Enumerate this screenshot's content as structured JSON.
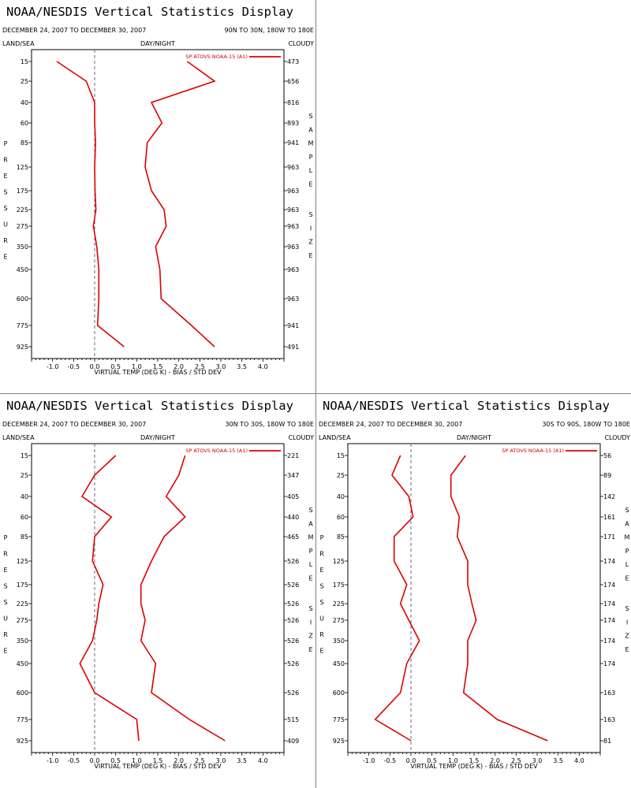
{
  "common": {
    "title": "NOAA/NESDIS Vertical Statistics Display",
    "date_range": "DECEMBER 24, 2007 TO DECEMBER 30, 2007",
    "land_sea": "LAND/SEA",
    "day_night": "DAY/NIGHT",
    "cloudy": "CLOUDY",
    "legend_label": "SP ATOVS NOAA-15 (A1)",
    "xlabel": "VIRTUAL TEMP (DEG K) - BIAS / STD DEV",
    "ylabel_vertical": "PRESSURE",
    "right_label_vertical": [
      "SAMPLE",
      "SIZE"
    ],
    "line_color": "#dd0000",
    "x_ticks": [
      "-1.0",
      "-0.5",
      "0.0",
      "0.5",
      "1.0",
      "1.5",
      "2.0",
      "2.5",
      "3.0",
      "3.5",
      "4.0"
    ]
  },
  "chart_data": [
    {
      "type": "line",
      "region": "90N TO 30N, 180W TO 180E",
      "levels": [
        "15",
        "25",
        "40",
        "60",
        "85",
        "125",
        "175",
        "225",
        "275",
        "350",
        "450",
        "600",
        "775",
        "925"
      ],
      "sample_size": [
        "473",
        "656",
        "816",
        "893",
        "941",
        "963",
        "963",
        "963",
        "963",
        "963",
        "963",
        "963",
        "941",
        "491"
      ],
      "xlim": [
        -1.5,
        4.5
      ],
      "series": [
        {
          "values": [
            -0.9,
            -0.2,
            -0.0,
            0.0,
            0.02,
            0.0,
            0.01,
            0.03,
            -0.03,
            0.05,
            0.1,
            0.1,
            0.07,
            0.7
          ]
        },
        {
          "values": [
            2.2,
            2.85,
            1.35,
            1.6,
            1.25,
            1.2,
            1.35,
            1.65,
            1.7,
            1.45,
            1.55,
            1.58,
            2.3,
            2.85
          ]
        }
      ]
    },
    {
      "type": "line",
      "region": "30N TO 30S, 180W TO 180E",
      "levels": [
        "15",
        "25",
        "40",
        "60",
        "85",
        "125",
        "175",
        "225",
        "275",
        "350",
        "450",
        "600",
        "775",
        "925"
      ],
      "sample_size": [
        "221",
        "347",
        "405",
        "440",
        "465",
        "526",
        "526",
        "526",
        "526",
        "526",
        "526",
        "526",
        "515",
        "409"
      ],
      "xlim": [
        -1.5,
        4.5
      ],
      "series": [
        {
          "values": [
            0.5,
            0.0,
            -0.3,
            0.4,
            0.0,
            -0.05,
            0.2,
            0.1,
            0.05,
            -0.05,
            -0.35,
            0.0,
            1.0,
            1.05
          ]
        },
        {
          "values": [
            2.15,
            2.0,
            1.7,
            2.15,
            1.65,
            1.35,
            1.1,
            1.1,
            1.2,
            1.1,
            1.45,
            1.35,
            2.25,
            3.1
          ]
        }
      ]
    },
    {
      "type": "line",
      "region": "30S TO 90S, 180W TO 180E",
      "levels": [
        "15",
        "25",
        "40",
        "60",
        "85",
        "125",
        "175",
        "225",
        "275",
        "350",
        "450",
        "600",
        "775",
        "925"
      ],
      "sample_size": [
        "56",
        "89",
        "142",
        "161",
        "171",
        "174",
        "174",
        "174",
        "174",
        "174",
        "174",
        "163",
        "163",
        "81"
      ],
      "xlim": [
        -1.5,
        4.5
      ],
      "series": [
        {
          "values": [
            -0.25,
            -0.45,
            -0.05,
            0.05,
            -0.4,
            -0.4,
            -0.1,
            -0.25,
            -0.05,
            0.2,
            -0.1,
            -0.25,
            -0.85,
            0.0
          ]
        },
        {
          "values": [
            1.3,
            0.95,
            0.95,
            1.15,
            1.1,
            1.35,
            1.35,
            1.45,
            1.55,
            1.35,
            1.35,
            1.25,
            2.05,
            3.25
          ]
        }
      ]
    }
  ]
}
